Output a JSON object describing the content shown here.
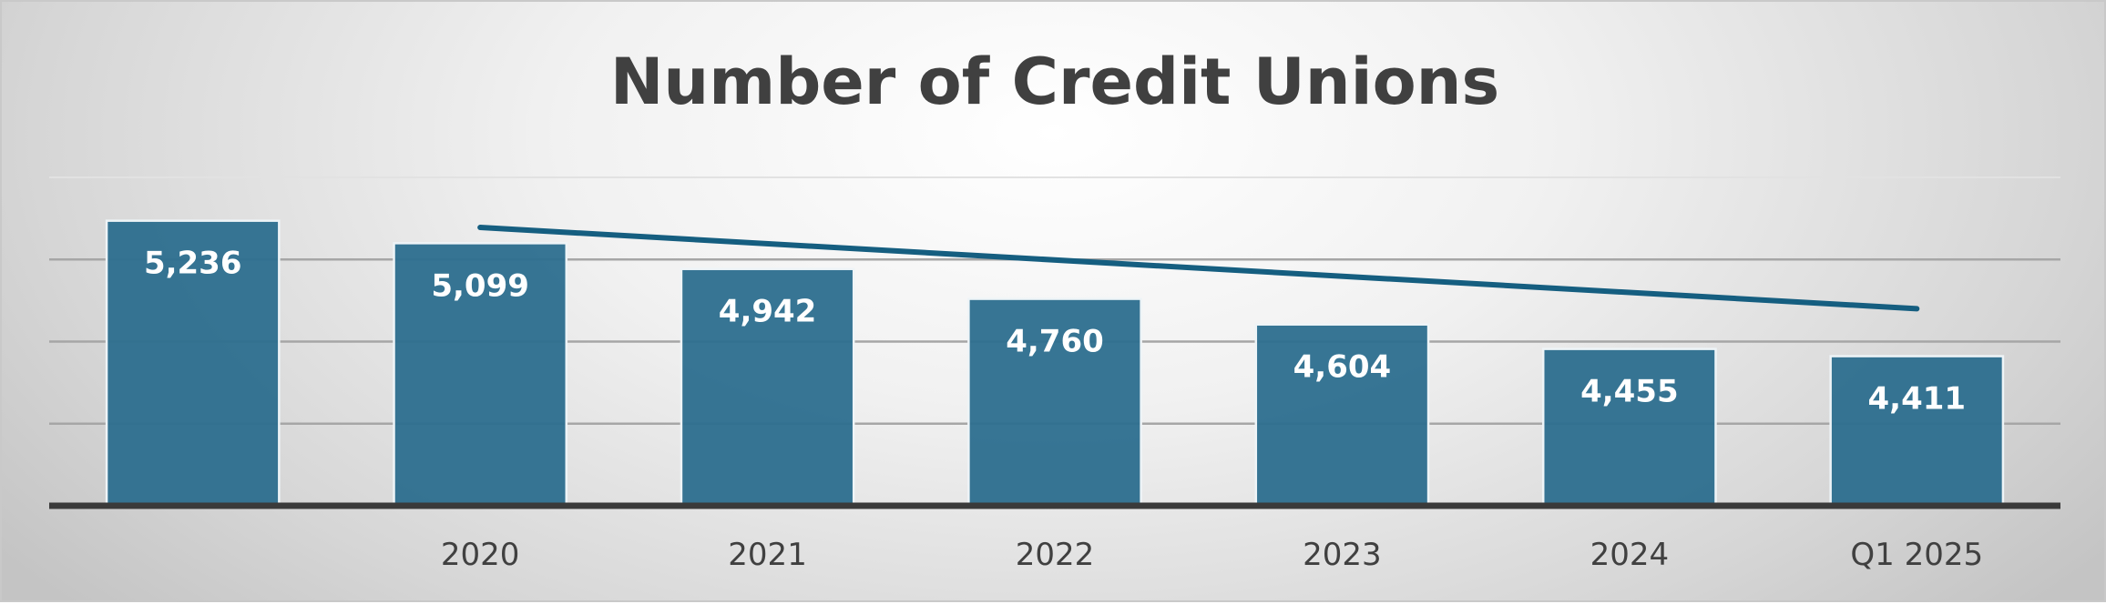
{
  "chart_data": {
    "type": "bar",
    "title": "Number of Credit Unions",
    "categories": [
      "",
      "2020",
      "2021",
      "2022",
      "2023",
      "2024",
      "Q1 2025"
    ],
    "values": [
      5236,
      5099,
      4942,
      4760,
      4604,
      4455,
      4411
    ],
    "value_labels": [
      "5,236",
      "5,099",
      "4,942",
      "4,760",
      "4,604",
      "4,455",
      "4,411"
    ],
    "trendline": {
      "type": "linear",
      "from_category": 1,
      "to_category": 6,
      "y_start": 5195,
      "y_end": 4700
    },
    "ylim": [
      3500,
      5500
    ],
    "yticks": [
      3500,
      4000,
      4500,
      5000,
      5500
    ],
    "grid": true,
    "legend": "none",
    "colors": {
      "bar": "#2c6e8e",
      "bar_edge": "#eef4f7",
      "trendline": "#155e80",
      "gridline": "#a6a6a6",
      "baseline": "#3a3a3a",
      "title": "#404040"
    }
  }
}
